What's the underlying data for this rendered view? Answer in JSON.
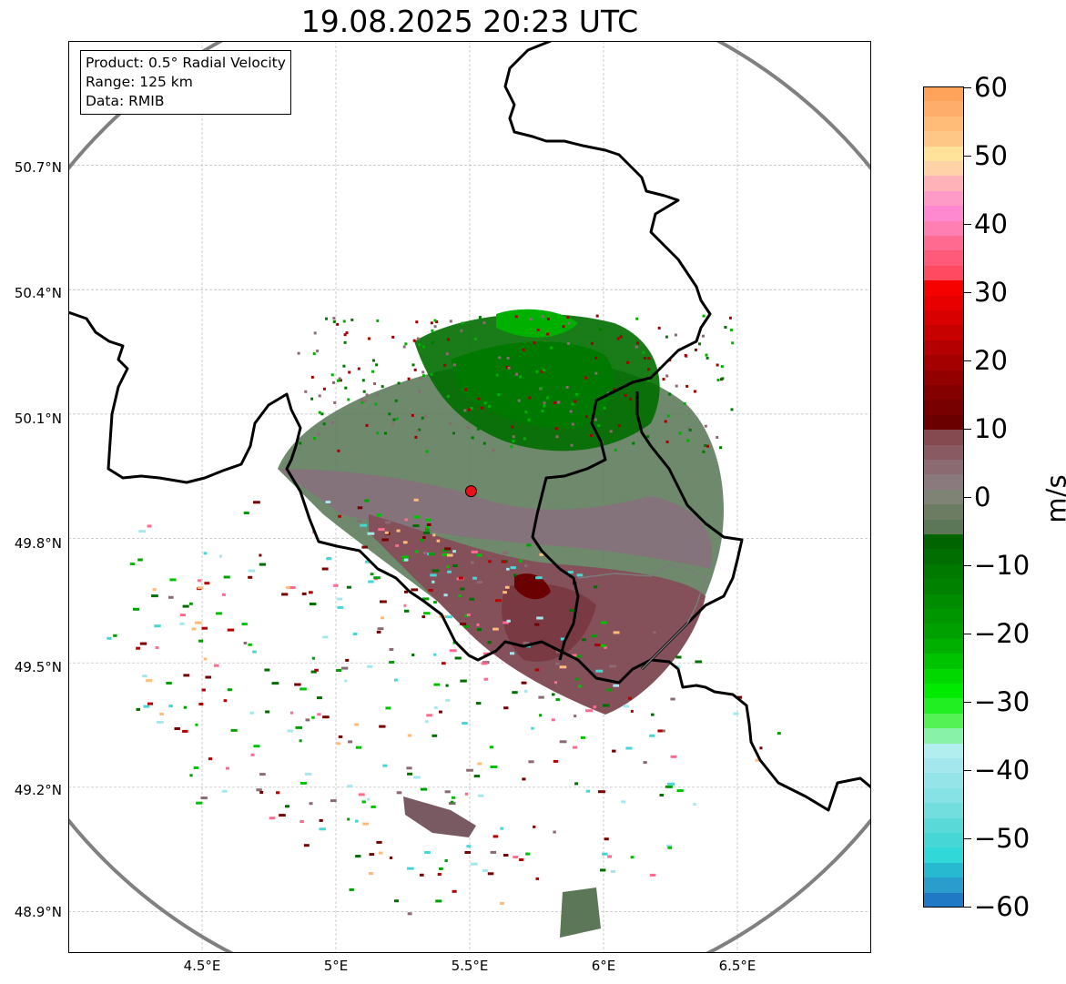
{
  "title": "19.08.2025 20:23 UTC",
  "info_box": {
    "line1": "Product: 0.5° Radial Velocity",
    "line2": "Range: 125 km",
    "line3": "Data: RMIB"
  },
  "map": {
    "lon_range": [
      4.0,
      7.0
    ],
    "lat_range": [
      48.8,
      51.0
    ],
    "lon_ticks": [
      "4.5°E",
      "5°E",
      "5.5°E",
      "6°E",
      "6.5°E"
    ],
    "lat_ticks": [
      "50.7°N",
      "50.4°N",
      "50.1°N",
      "49.8°N",
      "49.5°N",
      "49.2°N",
      "48.9°N"
    ],
    "radar_site": {
      "lon": 5.505,
      "lat": 49.914,
      "color": "#e8101a"
    },
    "range_ring_color": "#808080",
    "gridlines": true
  },
  "colorbar": {
    "unit": "m/s",
    "min": -60,
    "max": 60,
    "tick_labels": [
      "60",
      "50",
      "40",
      "30",
      "20",
      "10",
      "0",
      "−10",
      "−20",
      "−30",
      "−40",
      "−50",
      "−60"
    ],
    "colors_top_to_bottom": [
      "#ffa25a",
      "#ffad6a",
      "#ffbb78",
      "#ffc785",
      "#ffe39a",
      "#ffd2a8",
      "#ffb3b8",
      "#ff9bc6",
      "#ff89d1",
      "#ff7fb3",
      "#ff6b90",
      "#ff5a7a",
      "#ff4a62",
      "#f70000",
      "#e80000",
      "#d80000",
      "#c70000",
      "#b40000",
      "#a40000",
      "#920000",
      "#840000",
      "#770000",
      "#6a0000",
      "#844a50",
      "#8a5a62",
      "#8c6a72",
      "#8b7a7d",
      "#7f8376",
      "#6c7c63",
      "#5b7758",
      "#006400",
      "#006e00",
      "#007900",
      "#008200",
      "#008c00",
      "#009600",
      "#00a000",
      "#00b000",
      "#00c300",
      "#00d800",
      "#00ea00",
      "#22ef22",
      "#55f255",
      "#88f2a8",
      "#b2edf0",
      "#a4e8ed",
      "#95e4e8",
      "#86e2e4",
      "#72dede",
      "#5ad9d9",
      "#46d6d6",
      "#30d8d8",
      "#27b9cf",
      "#2a9dcc",
      "#2079c4"
    ]
  }
}
